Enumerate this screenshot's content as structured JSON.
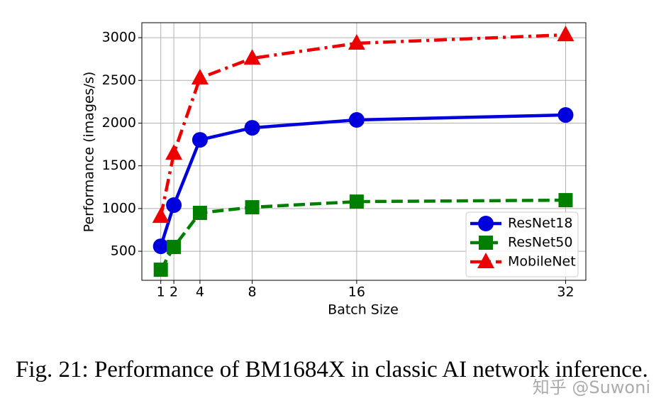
{
  "chart_data": {
    "type": "line",
    "xlabel": "Batch Size",
    "ylabel": "Performance (images/s)",
    "x": [
      1,
      2,
      4,
      8,
      16,
      32
    ],
    "series": [
      {
        "name": "ResNet18",
        "color": "#0000dd",
        "marker": "circle",
        "linestyle": "solid",
        "values": [
          558,
          1040,
          1804,
          1945,
          2037,
          2095
        ]
      },
      {
        "name": "ResNet50",
        "color": "#007f00",
        "marker": "square",
        "linestyle": "dashed",
        "values": [
          284,
          550,
          949,
          1015,
          1081,
          1098
        ]
      },
      {
        "name": "MobileNet",
        "color": "#ee0000",
        "marker": "triangle",
        "linestyle": "dashdot",
        "values": [
          907,
          1646,
          2527,
          2759,
          2934,
          3033
        ]
      }
    ],
    "xlim": [
      -0.45,
      33.55
    ],
    "ylim": [
      160,
      3175
    ],
    "xticks": [
      1,
      2,
      4,
      8,
      16,
      32
    ],
    "yticks": [
      500,
      1000,
      1500,
      2000,
      2500,
      3000
    ],
    "grid": true,
    "legend": "lower right"
  },
  "caption": "Fig. 21: Performance of BM1684X in classic AI network inference.",
  "watermark": "知乎 @Suwoni"
}
